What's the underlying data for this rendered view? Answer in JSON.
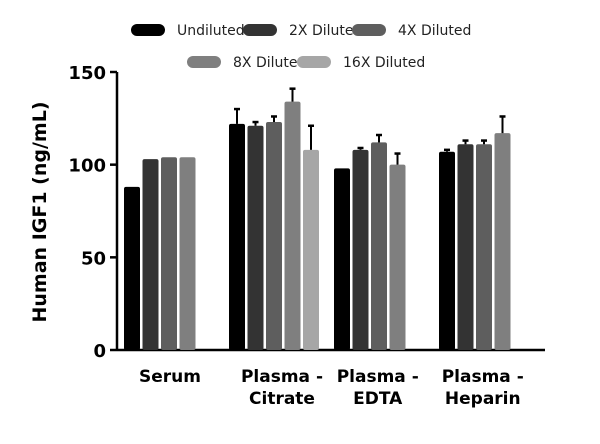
{
  "chart_data": {
    "type": "bar",
    "ylabel": "Human IGF1 (ng/mL)",
    "ylim": [
      0,
      150
    ],
    "yticks": [
      0,
      50,
      100,
      150
    ],
    "grid": false,
    "legend_position": "top",
    "categories": [
      [
        "Serum"
      ],
      [
        "Plasma -",
        "Citrate"
      ],
      [
        "Plasma -",
        "EDTA"
      ],
      [
        "Plasma -",
        "Heparin"
      ]
    ],
    "series": [
      {
        "name": "Undiluted",
        "color": "#000000",
        "values": [
          88,
          122,
          98,
          107
        ],
        "errors": [
          0,
          8,
          0,
          1
        ]
      },
      {
        "name": "2X Diluted",
        "color": "#333333",
        "values": [
          103,
          121,
          108,
          111
        ],
        "errors": [
          0,
          2,
          1,
          2
        ]
      },
      {
        "name": "4X Diluted",
        "color": "#5e5e5e",
        "values": [
          104,
          123,
          112,
          111
        ],
        "errors": [
          0,
          3,
          4,
          2
        ]
      },
      {
        "name": "8X Diluted",
        "color": "#7f7f7f",
        "values": [
          104,
          134,
          100,
          117
        ],
        "errors": [
          0,
          7,
          6,
          9
        ]
      },
      {
        "name": "16X Diluted",
        "color": "#a6a6a6",
        "values": [
          null,
          108,
          null,
          null
        ],
        "errors": [
          null,
          13,
          null,
          null
        ]
      }
    ]
  }
}
